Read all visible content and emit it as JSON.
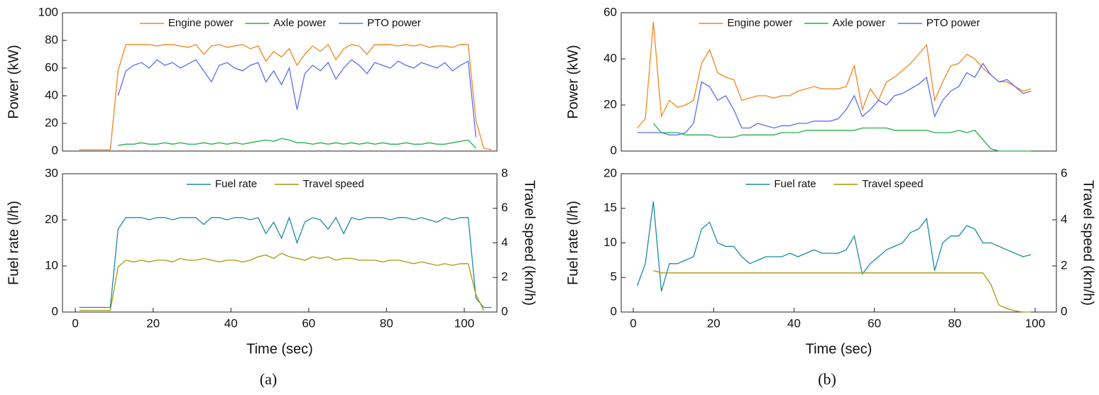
{
  "figure": {
    "panel_labels": [
      "(a)",
      "(b)"
    ]
  },
  "chart_data": [
    {
      "type": "line",
      "ylabel": "Power (kW)",
      "legend": "upper center",
      "x": [
        1,
        3,
        5,
        7,
        9,
        11,
        13,
        15,
        17,
        19,
        21,
        23,
        25,
        27,
        29,
        31,
        33,
        35,
        37,
        39,
        41,
        43,
        45,
        47,
        49,
        51,
        53,
        55,
        57,
        59,
        61,
        63,
        65,
        67,
        69,
        71,
        73,
        75,
        77,
        79,
        81,
        83,
        85,
        87,
        89,
        91,
        93,
        95,
        97,
        99,
        101,
        103,
        105,
        107
      ],
      "xlim": [
        -3.3,
        108.4
      ],
      "ylim": [
        0,
        100
      ],
      "yticks": [
        0,
        20,
        40,
        60,
        80,
        100
      ],
      "series": [
        {
          "name": "Engine power",
          "color": "#f4851f",
          "values": [
            1,
            1,
            1,
            1,
            1,
            58,
            77,
            77,
            77,
            77,
            76,
            77,
            77,
            76,
            75,
            77,
            70,
            76,
            77,
            75,
            76,
            77,
            74,
            76,
            65,
            72,
            68,
            74,
            62,
            70,
            76,
            72,
            77,
            66,
            74,
            77,
            76,
            70,
            77,
            77,
            77,
            76,
            77,
            76,
            77,
            75,
            76,
            76,
            75,
            77,
            77,
            22,
            2,
            1
          ]
        },
        {
          "name": "Axle power",
          "color": "#22b04a",
          "values": [
            null,
            null,
            null,
            null,
            null,
            4,
            5,
            5,
            6,
            5,
            5,
            6,
            5,
            6,
            5,
            5,
            6,
            5,
            6,
            5,
            6,
            5,
            6,
            7,
            8,
            7,
            9,
            8,
            6,
            6,
            5,
            6,
            5,
            6,
            5,
            6,
            5,
            6,
            5,
            6,
            5,
            5,
            6,
            5,
            5,
            6,
            5,
            5,
            6,
            7,
            8,
            2,
            null,
            null
          ]
        },
        {
          "name": "PTO power",
          "color": "#5b6ef5",
          "values": [
            null,
            null,
            null,
            null,
            null,
            40,
            58,
            62,
            64,
            60,
            66,
            62,
            64,
            60,
            63,
            66,
            58,
            50,
            62,
            64,
            60,
            58,
            62,
            64,
            50,
            58,
            48,
            60,
            30,
            56,
            62,
            58,
            64,
            52,
            60,
            66,
            62,
            56,
            64,
            62,
            60,
            65,
            62,
            60,
            64,
            62,
            60,
            64,
            58,
            62,
            65,
            10,
            null,
            null
          ]
        }
      ]
    },
    {
      "type": "line",
      "ylabel": "Fuel rate (l/h)",
      "y2label": "Travel speed (km/h)",
      "xlabel": "Time (sec)",
      "legend": "upper center",
      "x": [
        1,
        3,
        5,
        7,
        9,
        11,
        13,
        15,
        17,
        19,
        21,
        23,
        25,
        27,
        29,
        31,
        33,
        35,
        37,
        39,
        41,
        43,
        45,
        47,
        49,
        51,
        53,
        55,
        57,
        59,
        61,
        63,
        65,
        67,
        69,
        71,
        73,
        75,
        77,
        79,
        81,
        83,
        85,
        87,
        89,
        91,
        93,
        95,
        97,
        99,
        101,
        103,
        105,
        107
      ],
      "xlim": [
        -3.3,
        108.4
      ],
      "xticks": [
        0,
        20,
        40,
        60,
        80,
        100
      ],
      "ylim": [
        0,
        30
      ],
      "yticks": [
        0,
        10,
        20,
        30
      ],
      "y2lim": [
        0,
        8
      ],
      "y2ticks": [
        0,
        2,
        4,
        6,
        8
      ],
      "series": [
        {
          "name": "Fuel rate",
          "color": "#1a8aa8",
          "values": [
            1,
            1,
            1,
            1,
            1,
            18,
            20.5,
            20.5,
            20.5,
            20,
            20.5,
            20.5,
            20,
            20.5,
            20.5,
            20.5,
            19,
            20.5,
            20.5,
            20,
            20.5,
            20.5,
            20,
            20.5,
            17,
            19.5,
            16,
            20.5,
            15,
            19.5,
            20.5,
            20,
            18,
            20.5,
            17,
            20.5,
            20,
            20.5,
            20.5,
            20.5,
            20,
            20.5,
            20.5,
            20,
            20.5,
            20,
            19.5,
            20.5,
            20,
            20.5,
            20.5,
            3,
            1,
            1
          ]
        },
        {
          "name": "Travel speed",
          "color": "#a79a0a",
          "axis": "y2",
          "values": [
            0.1,
            0.1,
            0.1,
            0.1,
            0.1,
            2.6,
            3,
            2.9,
            3,
            2.9,
            3,
            3,
            2.9,
            3.1,
            3,
            3,
            3.1,
            3,
            2.9,
            3,
            3,
            2.9,
            3,
            3.2,
            3.3,
            3.1,
            3.4,
            3.2,
            3.1,
            3,
            3.2,
            3.1,
            3.2,
            3,
            3.1,
            3.1,
            3,
            3,
            3,
            2.9,
            3,
            3,
            2.9,
            2.8,
            2.9,
            2.8,
            2.7,
            2.8,
            2.7,
            2.8,
            2.8,
            1,
            0.1,
            null
          ]
        }
      ]
    },
    {
      "type": "line",
      "ylabel": "Power (kW)",
      "legend": "upper center",
      "x": [
        1,
        3,
        5,
        7,
        9,
        11,
        13,
        15,
        17,
        19,
        21,
        23,
        25,
        27,
        29,
        31,
        33,
        35,
        37,
        39,
        41,
        43,
        45,
        47,
        49,
        51,
        53,
        55,
        57,
        59,
        61,
        63,
        65,
        67,
        69,
        71,
        73,
        75,
        77,
        79,
        81,
        83,
        85,
        87,
        89,
        91,
        93,
        95,
        97,
        99
      ],
      "xlim": [
        -3,
        105.3
      ],
      "ylim": [
        0,
        60
      ],
      "yticks": [
        0,
        20,
        40,
        60
      ],
      "series": [
        {
          "name": "Engine power",
          "color": "#f4851f",
          "values": [
            10,
            14,
            56,
            15,
            22,
            19,
            20,
            22,
            38,
            44,
            34,
            32,
            31,
            22,
            23,
            24,
            24,
            23,
            24,
            24,
            26,
            27,
            28,
            27,
            27,
            27,
            28,
            37,
            18,
            27,
            22,
            30,
            32,
            35,
            38,
            42,
            46,
            22,
            30,
            37,
            38,
            42,
            40,
            36,
            33,
            30,
            30,
            28,
            26,
            27
          ]
        },
        {
          "name": "Axle power",
          "color": "#22b04a",
          "values": [
            null,
            null,
            12,
            8,
            8,
            8,
            7,
            7,
            7,
            7,
            6,
            6,
            6,
            7,
            7,
            7,
            7,
            7,
            8,
            8,
            8,
            9,
            9,
            9,
            9,
            9,
            9,
            9,
            10,
            10,
            10,
            10,
            9,
            9,
            9,
            9,
            9,
            8,
            8,
            8,
            9,
            8,
            9,
            5,
            1,
            0,
            0,
            0,
            0,
            0
          ]
        },
        {
          "name": "PTO power",
          "color": "#5b6ef5",
          "values": [
            8,
            8,
            8,
            8,
            7,
            7,
            8,
            12,
            30,
            28,
            22,
            24,
            18,
            10,
            10,
            12,
            11,
            10,
            11,
            11,
            12,
            12,
            13,
            13,
            13,
            14,
            18,
            24,
            15,
            18,
            22,
            20,
            24,
            25,
            27,
            29,
            32,
            15,
            22,
            26,
            28,
            34,
            32,
            38,
            33,
            30,
            31,
            28,
            25,
            26
          ]
        }
      ]
    },
    {
      "type": "line",
      "ylabel": "Fuel rate (l/h)",
      "y2label": "Travel speed (km/h)",
      "xlabel": "Time (sec)",
      "legend": "upper center",
      "x": [
        1,
        3,
        5,
        7,
        9,
        11,
        13,
        15,
        17,
        19,
        21,
        23,
        25,
        27,
        29,
        31,
        33,
        35,
        37,
        39,
        41,
        43,
        45,
        47,
        49,
        51,
        53,
        55,
        57,
        59,
        61,
        63,
        65,
        67,
        69,
        71,
        73,
        75,
        77,
        79,
        81,
        83,
        85,
        87,
        89,
        91,
        93,
        95,
        97,
        99
      ],
      "xlim": [
        -3,
        105.3
      ],
      "xticks": [
        0,
        20,
        40,
        60,
        80,
        100
      ],
      "ylim": [
        0,
        20
      ],
      "yticks": [
        0,
        5,
        10,
        15,
        20
      ],
      "y2lim": [
        0,
        6
      ],
      "y2ticks": [
        0,
        2,
        4,
        6
      ],
      "series": [
        {
          "name": "Fuel rate",
          "color": "#1a8aa8",
          "values": [
            3.8,
            7,
            16,
            3,
            7,
            7,
            7.5,
            8,
            12,
            13,
            10,
            9.5,
            9.5,
            8,
            7,
            7.5,
            8,
            8,
            8,
            8.5,
            8,
            8.5,
            9,
            8.5,
            8.5,
            8.5,
            9,
            11,
            5.5,
            7,
            8,
            9,
            9.5,
            10,
            11.5,
            12,
            13.5,
            6,
            10,
            11,
            11,
            12.5,
            12,
            10,
            10,
            9.5,
            9,
            8.5,
            8,
            8.3
          ]
        },
        {
          "name": "Travel speed",
          "color": "#a79a0a",
          "axis": "y2",
          "values": [
            null,
            null,
            1.8,
            1.7,
            1.7,
            1.7,
            1.7,
            1.7,
            1.7,
            1.7,
            1.7,
            1.7,
            1.7,
            1.7,
            1.7,
            1.7,
            1.7,
            1.7,
            1.7,
            1.7,
            1.7,
            1.7,
            1.7,
            1.7,
            1.7,
            1.7,
            1.7,
            1.7,
            1.7,
            1.7,
            1.7,
            1.7,
            1.7,
            1.7,
            1.7,
            1.7,
            1.7,
            1.7,
            1.7,
            1.7,
            1.7,
            1.7,
            1.7,
            1.7,
            1.2,
            0.3,
            0.15,
            0.05,
            0,
            0
          ]
        }
      ]
    }
  ]
}
